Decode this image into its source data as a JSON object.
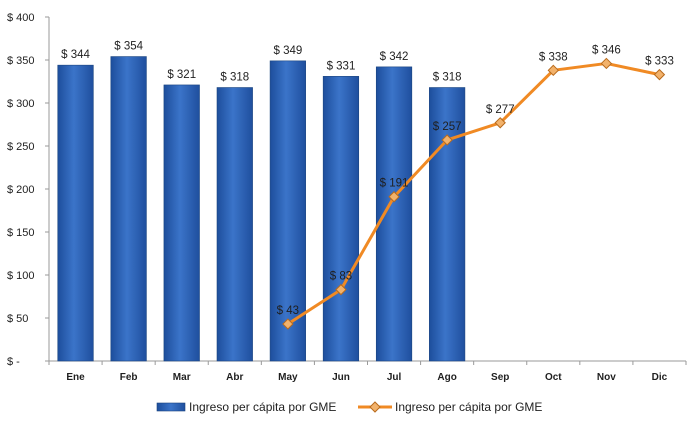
{
  "chart_data": {
    "type": "bar",
    "title": "",
    "xlabel": "",
    "ylabel": "",
    "ylim": [
      0,
      400
    ],
    "y_step": 50,
    "y_tick_labels": [
      "$ -",
      "$ 50",
      "$ 100",
      "$ 150",
      "$ 200",
      "$ 250",
      "$ 300",
      "$ 350",
      "$ 400"
    ],
    "grid": false,
    "legend_position": "bottom",
    "categories": [
      "Ene",
      "Feb",
      "Mar",
      "Abr",
      "May",
      "Jun",
      "Jul",
      "Ago",
      "Sep",
      "Oct",
      "Nov",
      "Dic"
    ],
    "series": [
      {
        "name": "Ingreso per cápita por GME",
        "type": "bar",
        "color": "#2e63b8",
        "values": [
          344,
          354,
          321,
          318,
          349,
          331,
          342,
          318,
          null,
          null,
          null,
          null
        ],
        "labels": [
          "$ 344",
          "$ 354",
          "$ 321",
          "$ 318",
          "$ 349",
          "$ 331",
          "$ 342",
          "$ 318",
          "",
          "",
          "",
          ""
        ]
      },
      {
        "name": "Ingreso per cápita por GME",
        "type": "line",
        "color": "#f08a24",
        "marker_color": "#f2b26b",
        "values": [
          null,
          null,
          null,
          null,
          43,
          83,
          191,
          257,
          277,
          338,
          346,
          333
        ],
        "labels": [
          "",
          "",
          "",
          "",
          "$ 43",
          "$ 83",
          "$ 191",
          "$ 257",
          "$ 277",
          "$ 338",
          "$ 346",
          "$ 333"
        ]
      }
    ]
  }
}
